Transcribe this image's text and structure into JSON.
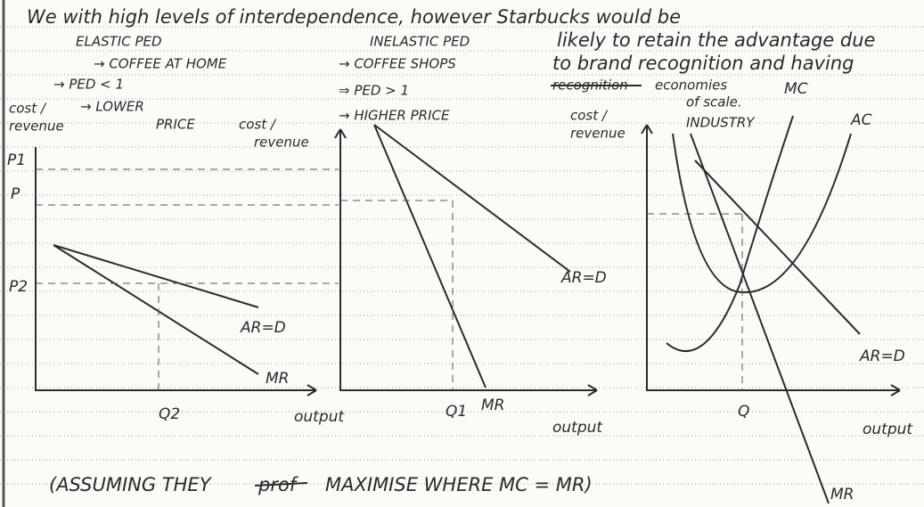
{
  "header": {
    "lines": [
      "We with high levels of interdependence, however Starbucks would be",
      "likely to retain the advantage due",
      "to brand recognition and having",
      "recognition",
      "economies",
      "of scale."
    ]
  },
  "diagrams": [
    {
      "notes": [
        "ELASTIC PED",
        "→ COFFEE AT HOME",
        "→ PED < 1",
        "→ LOWER",
        "PRICE"
      ],
      "y_label": [
        "cost /",
        "revenue"
      ],
      "labels": [
        "P1",
        "P",
        "P2",
        "AR=D",
        "MR",
        "Q2",
        "output"
      ]
    },
    {
      "notes": [
        "INELASTIC PED",
        "→ COFFEE SHOPS",
        "⇒ PED > 1",
        "→ HIGHER PRICE"
      ],
      "y_label": [
        "cost /",
        "revenue"
      ],
      "labels": [
        "AR=D",
        "Q1",
        "MR",
        "output"
      ]
    },
    {
      "notes": [
        "INDUSTRY"
      ],
      "y_label": [
        "cost /",
        "revenue"
      ],
      "labels": [
        "MC",
        "AC",
        "AR=D",
        "Q",
        "MR",
        "output"
      ]
    }
  ],
  "footer": {
    "parts": [
      "(ASSUMING THEY",
      "prof",
      "MAXIMISE WHERE MC = MR)"
    ]
  }
}
